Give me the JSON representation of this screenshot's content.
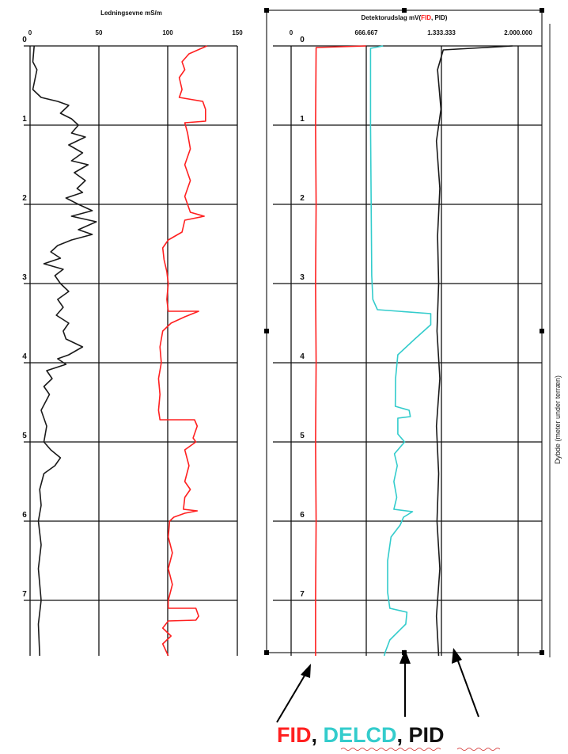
{
  "chart_data": [
    {
      "type": "line",
      "title": "Ledningsevne mS/m",
      "xlim": [
        0,
        150
      ],
      "x_ticks": [
        "0",
        "50",
        "100",
        "150"
      ],
      "ylim": [
        0,
        7.7
      ],
      "y_ticks": [
        "0",
        "1",
        "2",
        "3",
        "4",
        "5",
        "6",
        "7"
      ],
      "y_inverted": true,
      "grid": true,
      "series": [
        {
          "color": "#1a1a1a",
          "points": [
            [
              3,
              0
            ],
            [
              2,
              0.2
            ],
            [
              5,
              0.3
            ],
            [
              2,
              0.55
            ],
            [
              8,
              0.65
            ],
            [
              20,
              0.7
            ],
            [
              28,
              0.75
            ],
            [
              22,
              0.85
            ],
            [
              30,
              0.92
            ],
            [
              35,
              1.0
            ],
            [
              30,
              1.1
            ],
            [
              40,
              1.15
            ],
            [
              28,
              1.25
            ],
            [
              38,
              1.35
            ],
            [
              30,
              1.45
            ],
            [
              42,
              1.5
            ],
            [
              32,
              1.6
            ],
            [
              40,
              1.7
            ],
            [
              34,
              1.8
            ],
            [
              38,
              1.85
            ],
            [
              26,
              1.92
            ],
            [
              35,
              2.0
            ],
            [
              45,
              2.08
            ],
            [
              30,
              2.15
            ],
            [
              48,
              2.22
            ],
            [
              35,
              2.32
            ],
            [
              45,
              2.38
            ],
            [
              30,
              2.45
            ],
            [
              20,
              2.52
            ],
            [
              15,
              2.6
            ],
            [
              22,
              2.68
            ],
            [
              10,
              2.75
            ],
            [
              24,
              2.82
            ],
            [
              18,
              2.9
            ],
            [
              22,
              3.0
            ],
            [
              28,
              3.1
            ],
            [
              20,
              3.2
            ],
            [
              24,
              3.3
            ],
            [
              19,
              3.4
            ],
            [
              28,
              3.5
            ],
            [
              24,
              3.6
            ],
            [
              26,
              3.7
            ],
            [
              38,
              3.8
            ],
            [
              28,
              3.9
            ],
            [
              20,
              3.95
            ],
            [
              26,
              4.02
            ],
            [
              12,
              4.1
            ],
            [
              16,
              4.2
            ],
            [
              10,
              4.3
            ],
            [
              14,
              4.4
            ],
            [
              8,
              4.6
            ],
            [
              12,
              4.8
            ],
            [
              10,
              5.0
            ],
            [
              15,
              5.1
            ],
            [
              22,
              5.2
            ],
            [
              18,
              5.3
            ],
            [
              10,
              5.4
            ],
            [
              7,
              5.6
            ],
            [
              8,
              5.8
            ],
            [
              6,
              6.0
            ],
            [
              8,
              6.3
            ],
            [
              6,
              6.6
            ],
            [
              8,
              7.0
            ],
            [
              6,
              7.3
            ],
            [
              7,
              7.7
            ]
          ]
        },
        {
          "color": "#ff2020",
          "points": [
            [
              128,
              0
            ],
            [
              115,
              0.1
            ],
            [
              110,
              0.2
            ],
            [
              112,
              0.3
            ],
            [
              108,
              0.4
            ],
            [
              110,
              0.55
            ],
            [
              108,
              0.65
            ],
            [
              125,
              0.7
            ],
            [
              127,
              0.8
            ],
            [
              127,
              0.95
            ],
            [
              112,
              0.97
            ],
            [
              114,
              1.1
            ],
            [
              116,
              1.3
            ],
            [
              112,
              1.5
            ],
            [
              116,
              1.7
            ],
            [
              112,
              1.9
            ],
            [
              114,
              2.0
            ],
            [
              116,
              2.1
            ],
            [
              126,
              2.15
            ],
            [
              112,
              2.2
            ],
            [
              110,
              2.35
            ],
            [
              100,
              2.45
            ],
            [
              96,
              2.55
            ],
            [
              97,
              2.7
            ],
            [
              99,
              2.85
            ],
            [
              100,
              3.0
            ],
            [
              99,
              3.2
            ],
            [
              100,
              3.35
            ],
            [
              122,
              3.35
            ],
            [
              112,
              3.42
            ],
            [
              102,
              3.5
            ],
            [
              96,
              3.6
            ],
            [
              94,
              3.8
            ],
            [
              95,
              4.0
            ],
            [
              93,
              4.2
            ],
            [
              94,
              4.4
            ],
            [
              93,
              4.6
            ],
            [
              94,
              4.72
            ],
            [
              119,
              4.72
            ],
            [
              121,
              4.8
            ],
            [
              118,
              4.95
            ],
            [
              120,
              5.0
            ],
            [
              112,
              5.1
            ],
            [
              115,
              5.3
            ],
            [
              112,
              5.5
            ],
            [
              116,
              5.6
            ],
            [
              112,
              5.7
            ],
            [
              111,
              5.85
            ],
            [
              121,
              5.87
            ],
            [
              112,
              5.9
            ],
            [
              104,
              5.95
            ],
            [
              101,
              6.0
            ],
            [
              100,
              6.2
            ],
            [
              103,
              6.4
            ],
            [
              100,
              6.6
            ],
            [
              103,
              6.8
            ],
            [
              100,
              7.0
            ],
            [
              100,
              7.1
            ],
            [
              120,
              7.1
            ],
            [
              122,
              7.2
            ],
            [
              120,
              7.25
            ],
            [
              100,
              7.26
            ],
            [
              96,
              7.35
            ],
            [
              102,
              7.45
            ],
            [
              96,
              7.55
            ],
            [
              100,
              7.7
            ]
          ]
        }
      ]
    },
    {
      "type": "line",
      "title_prefix": "Detektorudslag mV(",
      "title_fid": "FID",
      "title_suffix": ", PID)",
      "xlim": [
        0,
        2000000
      ],
      "x_ticks": [
        "0",
        "666.667",
        "1.333.333",
        "2.000.000"
      ],
      "ylim": [
        0,
        7.7
      ],
      "y_ticks": [
        "0",
        "1",
        "2",
        "3",
        "4",
        "5",
        "6",
        "7"
      ],
      "y_inverted": true,
      "grid": true,
      "side_label": "Dybde (meter under terræn)",
      "series": [
        {
          "name": "FID",
          "color": "#ff2020",
          "points": [
            [
              660000,
              0
            ],
            [
              220000,
              0.02
            ],
            [
              215000,
              1.0
            ],
            [
              220000,
              2.0
            ],
            [
              215000,
              3.0
            ],
            [
              220000,
              4.0
            ],
            [
              215000,
              5.0
            ],
            [
              220000,
              6.0
            ],
            [
              215000,
              7.0
            ],
            [
              215000,
              7.7
            ]
          ]
        },
        {
          "name": "DELCD",
          "color": "#33cccc",
          "points": [
            [
              810000,
              0
            ],
            [
              700000,
              0.03
            ],
            [
              700000,
              1.0
            ],
            [
              705000,
              2.0
            ],
            [
              710000,
              2.9
            ],
            [
              720000,
              3.2
            ],
            [
              760000,
              3.33
            ],
            [
              1230000,
              3.38
            ],
            [
              1230000,
              3.52
            ],
            [
              1090000,
              3.7
            ],
            [
              940000,
              3.9
            ],
            [
              920000,
              4.2
            ],
            [
              918000,
              4.55
            ],
            [
              1040000,
              4.6
            ],
            [
              1050000,
              4.68
            ],
            [
              940000,
              4.7
            ],
            [
              940000,
              4.9
            ],
            [
              1000000,
              5.0
            ],
            [
              910000,
              5.15
            ],
            [
              935000,
              5.3
            ],
            [
              905000,
              5.5
            ],
            [
              930000,
              5.7
            ],
            [
              905000,
              5.85
            ],
            [
              1070000,
              5.88
            ],
            [
              990000,
              5.95
            ],
            [
              960000,
              6.05
            ],
            [
              880000,
              6.2
            ],
            [
              850000,
              6.5
            ],
            [
              850000,
              6.9
            ],
            [
              870000,
              7.1
            ],
            [
              1020000,
              7.15
            ],
            [
              1010000,
              7.3
            ],
            [
              870000,
              7.5
            ],
            [
              830000,
              7.65
            ],
            [
              820000,
              7.7
            ]
          ]
        },
        {
          "name": "PID",
          "color": "#1a1a1a",
          "points": [
            [
              1950000,
              0
            ],
            [
              1340000,
              0.05
            ],
            [
              1290000,
              0.3
            ],
            [
              1320000,
              0.8
            ],
            [
              1280000,
              1.2
            ],
            [
              1310000,
              1.8
            ],
            [
              1290000,
              2.4
            ],
            [
              1300000,
              3.0
            ],
            [
              1285000,
              3.6
            ],
            [
              1310000,
              4.2
            ],
            [
              1280000,
              4.8
            ],
            [
              1300000,
              5.4
            ],
            [
              1285000,
              6.0
            ],
            [
              1310000,
              6.6
            ],
            [
              1280000,
              7.2
            ],
            [
              1300000,
              7.7
            ]
          ]
        }
      ]
    }
  ],
  "legend": {
    "fid": "FID",
    "sep1": ", ",
    "delcd": "DELCD",
    "sep2": ", ",
    "pid": "PID",
    "colors": {
      "fid": "#ff2020",
      "delcd": "#33cccc",
      "pid": "#111111"
    }
  }
}
